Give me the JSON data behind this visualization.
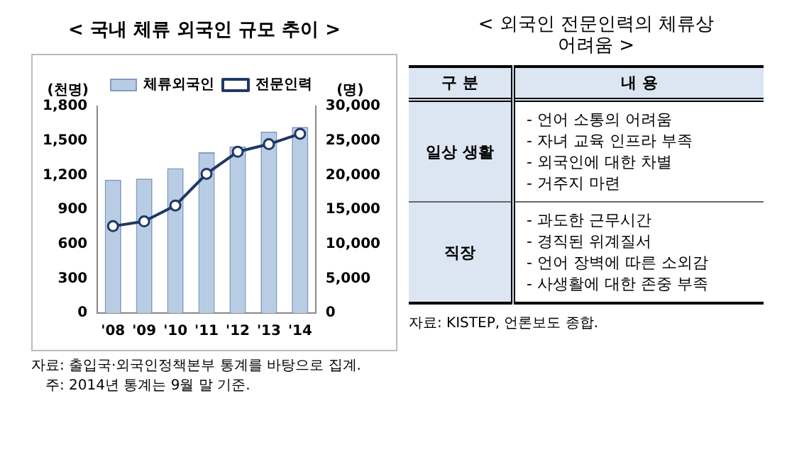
{
  "chart_data": [
    {
      "type": "bar",
      "title": "< 국내 체류 외국인 규모 추이 >",
      "categories": [
        "'08",
        "'09",
        "'10",
        "'11",
        "'12",
        "'13",
        "'14"
      ],
      "series": [
        {
          "name": "체류외국인",
          "type": "bar",
          "color": "#b8cce4",
          "values": [
            1160,
            1170,
            1260,
            1400,
            1450,
            1580,
            1620
          ]
        },
        {
          "name": "전문인력",
          "type": "line",
          "axis": "y2",
          "color": "#1f3864",
          "values": [
            12600,
            13300,
            15600,
            20200,
            23400,
            24500,
            26000
          ]
        }
      ],
      "ylabel": "(천명)",
      "y2label": "(명)",
      "ylim": [
        0,
        1800
      ],
      "yticks": [
        0,
        300,
        600,
        900,
        {
          "value": 1200,
          "label": "1,200"
        },
        {
          "value": 1500,
          "label": "1,500"
        },
        {
          "value": 1800,
          "label": "1,800"
        }
      ],
      "y2lim": [
        0,
        30000
      ],
      "y2ticks": [
        0,
        {
          "value": 5000,
          "label": "5,000"
        },
        {
          "value": 10000,
          "label": "10,000"
        },
        {
          "value": 15000,
          "label": "15,000"
        },
        {
          "value": 20000,
          "label": "20,000"
        },
        {
          "value": 25000,
          "label": "25,000"
        },
        {
          "value": 30000,
          "label": "30,000"
        }
      ],
      "legend": "top",
      "marker": "circle",
      "annotations": [
        "자료: 출입국·외국인정책본부 통계를 바탕으로 집계.",
        "주: 2014년 통계는 9월 말 기준."
      ]
    },
    {
      "type": "other",
      "title": "< 외국인 전문인력의 체류상 어려움 >",
      "annotations": [
        "구 분",
        "내 용",
        "일상 생활",
        "- 언어 소통의 어려움",
        "- 자녀 교육 인프라 부족",
        "- 외국인에 대한 차별",
        "- 거주지 마련",
        "직장",
        "- 과도한 근무시간",
        "- 경직된 위계질서",
        "- 언어 장벽에 따른 소외감",
        "- 사생활에 대한 존중 부족",
        "자료: KISTEP, 언론보도 종합."
      ]
    }
  ]
}
